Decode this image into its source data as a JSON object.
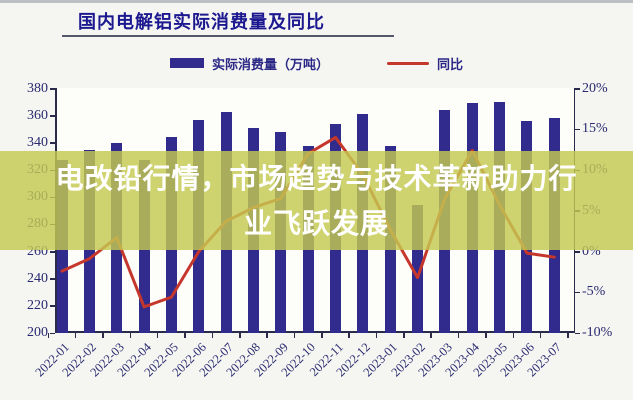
{
  "title": "国内电解铝实际消费量及同比",
  "overlay": {
    "line1": "电改铅行情，市场趋势与技术革新助力行",
    "line2": "业飞跃发展"
  },
  "legend": [
    {
      "label": "实际消费量（万吨）",
      "type": "bar",
      "color": "#312b8d"
    },
    {
      "label": "同比",
      "type": "line",
      "color": "#c5372c"
    }
  ],
  "colors": {
    "bar": "#312b8d",
    "line": "#c5372c",
    "axis_text": "#2a2a70",
    "title_text": "#1c1890",
    "band": "rgba(196,201,80,0.82)"
  },
  "chart_data": {
    "type": "bar",
    "categories": [
      "2022-01",
      "2022-02",
      "2022-03",
      "2022-04",
      "2022-05",
      "2022-06",
      "2022-07",
      "2022-08",
      "2022-09",
      "2022-10",
      "2022-11",
      "2022-12",
      "2023-01",
      "2023-02",
      "2023-03",
      "2023-04",
      "2023-05",
      "2023-06",
      "2023-07"
    ],
    "series": [
      {
        "name": "实际消费量（万吨）",
        "type": "bar",
        "axis": "left",
        "values": [
          327,
          335,
          340,
          327,
          344,
          357,
          363,
          351,
          348,
          338,
          354,
          361,
          338,
          294,
          364,
          369,
          370,
          356,
          358
        ]
      },
      {
        "name": "同比",
        "type": "line",
        "axis": "right",
        "values": [
          -2.4,
          -0.9,
          1.7,
          -6.8,
          -5.6,
          0.0,
          3.7,
          5.4,
          6.5,
          12.0,
          14.0,
          9.4,
          2.7,
          -3.2,
          6.5,
          12.4,
          5.7,
          -0.2,
          -0.7
        ]
      }
    ],
    "left_axis": {
      "min": 200,
      "max": 380,
      "step": 20,
      "ticks": [
        "380",
        "360",
        "340",
        "320",
        "300",
        "280",
        "260",
        "240",
        "220",
        "200"
      ]
    },
    "right_axis": {
      "min": -10,
      "max": 20,
      "step": 5,
      "ticks": [
        "20%",
        "15%",
        "10%",
        "5%",
        "0%",
        "-5%",
        "-10%"
      ]
    },
    "grid": false,
    "legend_position": "top"
  }
}
